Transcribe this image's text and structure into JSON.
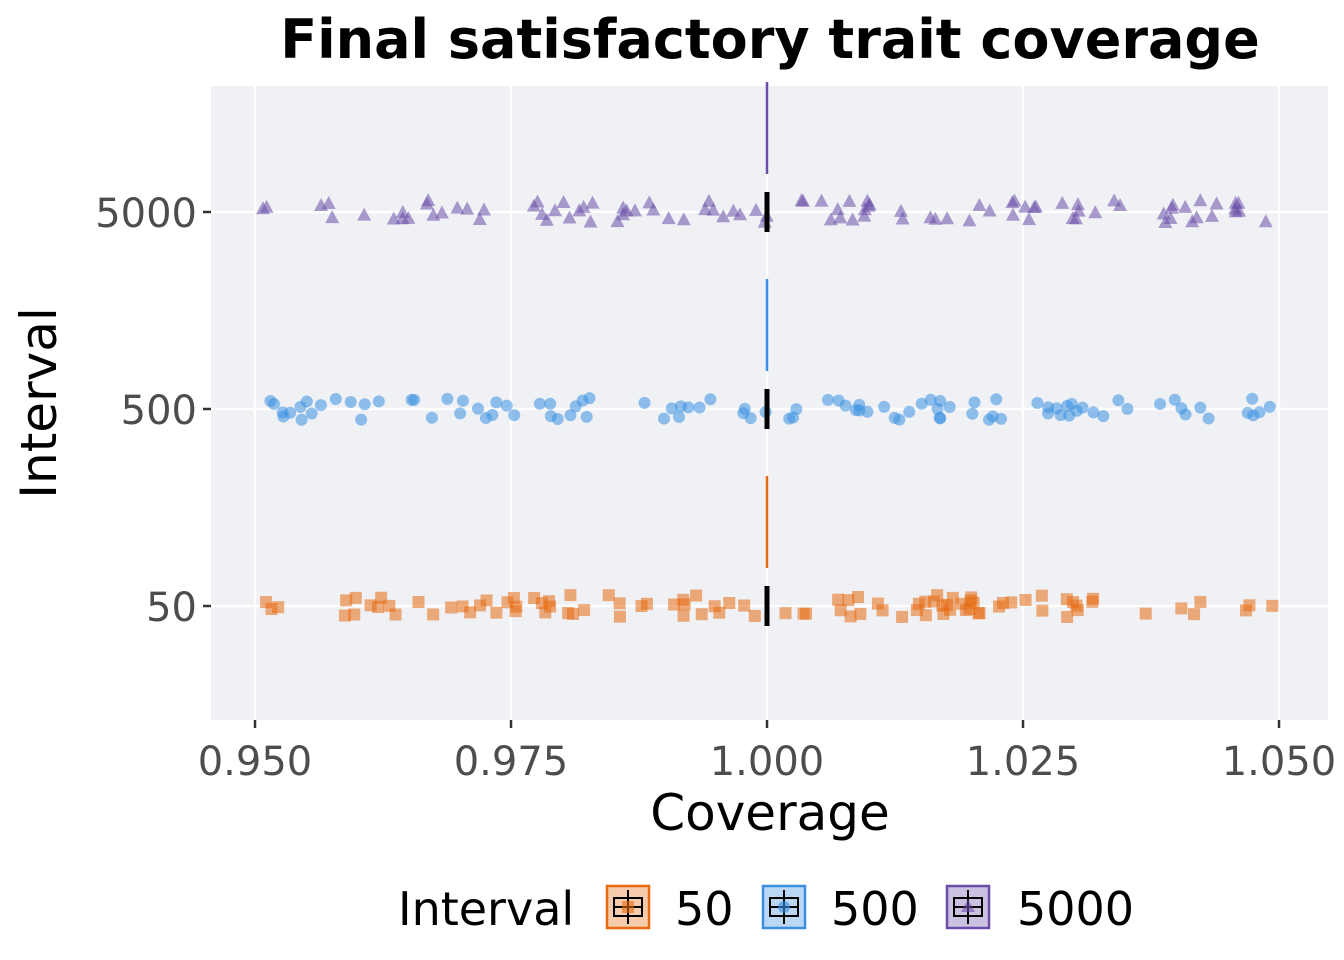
{
  "chart_data": {
    "type": "scatter",
    "title": "Final satisfactory trait coverage",
    "xlabel": "Coverage",
    "ylabel": "Interval",
    "xlim": [
      0.95,
      1.05
    ],
    "x_ticks": [
      "0.950",
      "0.975",
      "1.000",
      "1.025",
      "1.050"
    ],
    "x_tick_values": [
      0.95,
      0.975,
      1.0,
      1.025,
      1.05
    ],
    "categories": [
      "50",
      "500",
      "5000"
    ],
    "grid": true,
    "legend": {
      "title": "Interval",
      "placement": "bottom",
      "entries": [
        "50",
        "500",
        "5000"
      ]
    },
    "series": [
      {
        "name": "50",
        "category": "50",
        "shape": "square",
        "color": "#e66a10",
        "values_all": 1.0,
        "count": 100,
        "median": 1.0
      },
      {
        "name": "500",
        "category": "500",
        "shape": "circle",
        "color": "#3a8fe0",
        "values_all": 1.0,
        "count": 100,
        "median": 1.0
      },
      {
        "name": "5000",
        "category": "5000",
        "shape": "triangle",
        "color": "#6a4ea8",
        "values_all": 1.0,
        "count": 100,
        "median": 1.0
      }
    ],
    "colors": {
      "panel_background": "#f0f1f5",
      "gridline": "#ffffff",
      "median_bar": "#000000"
    }
  }
}
